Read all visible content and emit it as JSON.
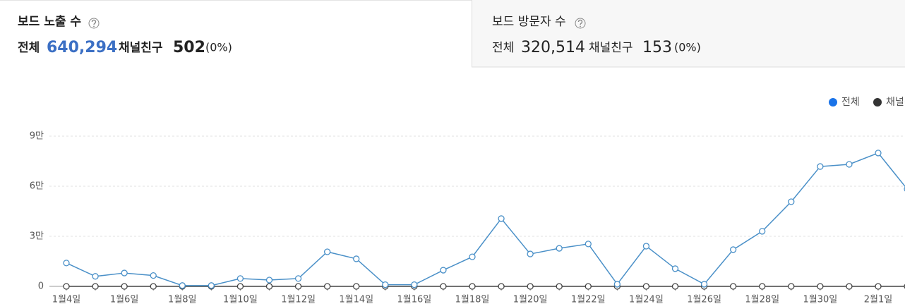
{
  "panels": [
    {
      "title": "보드 노출 수",
      "total_label": "전체",
      "total": "640,294",
      "friend_label": "채널친구",
      "friend": "502",
      "friend_pct": "(0%)"
    },
    {
      "title": "보드 방문자 수",
      "total_label": "전체",
      "total": "320,514",
      "friend_label": "채널친구",
      "friend": "153",
      "friend_pct": "(0%)"
    }
  ],
  "chart_data": {
    "type": "line",
    "categories": [
      "1월4일",
      null,
      "1월6일",
      null,
      "1월8일",
      null,
      "1월10일",
      null,
      "1월12일",
      null,
      "1월14일",
      null,
      "1월16일",
      null,
      "1월18일",
      null,
      "1월20일",
      null,
      "1월22일",
      null,
      "1월24일",
      null,
      "1월26일",
      null,
      "1월28일",
      null,
      "1월30일",
      null,
      "2월1일",
      null
    ],
    "series": [
      {
        "name": "전체",
        "color": "#4a90c8",
        "legend_color": "#1a73e8",
        "values": [
          14000,
          6000,
          8000,
          6500,
          500,
          500,
          4700,
          3800,
          4700,
          20700,
          16500,
          1000,
          1000,
          9700,
          17700,
          40600,
          19400,
          22800,
          25400,
          1300,
          24100,
          10600,
          1300,
          22000,
          33000,
          50700,
          71800,
          73100,
          79900,
          58300
        ]
      },
      {
        "name": "채널친구",
        "color": "#444444",
        "legend_color": "#333333",
        "values": [
          0,
          0,
          0,
          0,
          0,
          0,
          0,
          0,
          0,
          0,
          0,
          0,
          0,
          0,
          0,
          0,
          0,
          0,
          0,
          0,
          0,
          0,
          0,
          0,
          0,
          0,
          0,
          0,
          0,
          0
        ]
      }
    ],
    "ylim": [
      0,
      90000
    ],
    "yticks": [
      0,
      {
        "value": 30000,
        "label": "3만"
      },
      {
        "value": 60000,
        "label": "6만"
      },
      {
        "value": 90000,
        "label": "9만"
      }
    ],
    "grid": true,
    "legend": "top-right"
  }
}
